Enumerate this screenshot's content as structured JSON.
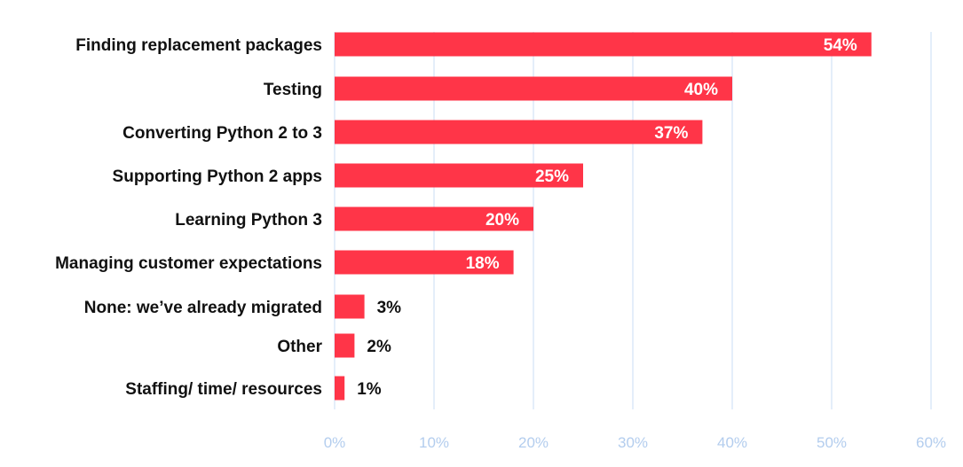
{
  "chart_data": {
    "type": "bar",
    "orientation": "horizontal",
    "categories": [
      "Finding replacement packages",
      "Testing",
      "Converting Python 2 to 3",
      "Supporting Python 2 apps",
      "Learning Python 3",
      "Managing customer expectations",
      "None: we’ve already migrated",
      "Other",
      "Staffing/ time/ resources"
    ],
    "values": [
      54,
      40,
      37,
      25,
      20,
      18,
      3,
      2,
      1
    ],
    "data_labels": [
      "54%",
      "40%",
      "37%",
      "25%",
      "20%",
      "18%",
      "3%",
      "2%",
      "1%"
    ],
    "x_ticks": [
      "0%",
      "10%",
      "20%",
      "30%",
      "40%",
      "50%",
      "60%"
    ],
    "xlim": [
      0,
      60
    ],
    "grid": true,
    "legend": "none",
    "title": "",
    "xlabel": "",
    "ylabel": "",
    "colors": {
      "bar": "#ff3548",
      "grid": "#c9dcf5",
      "tick_text": "#b3cdee",
      "label_text": "#111111",
      "label_inside": "#ffffff"
    }
  }
}
